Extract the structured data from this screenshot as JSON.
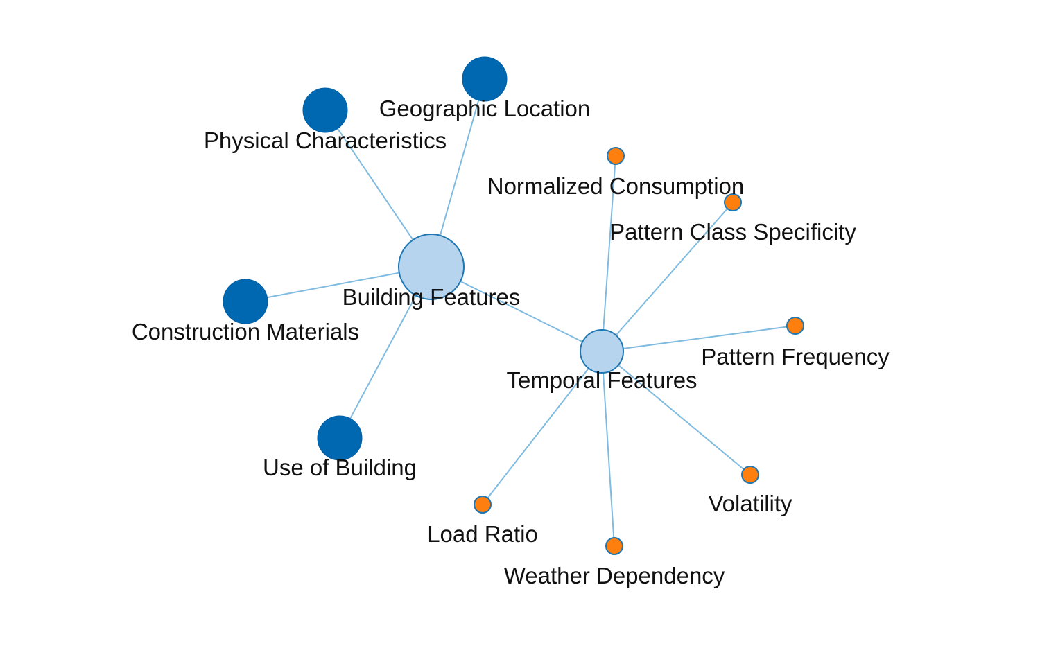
{
  "colors": {
    "hub_fill": "#b7d4ee",
    "hub_stroke": "#1f77b4",
    "building_child_fill": "#0067b1",
    "building_child_stroke": "#0060a6",
    "temporal_child_fill": "#ff7f0e",
    "temporal_child_stroke": "#1f77b4",
    "edge": "#7fbbe0"
  },
  "nodes": [
    {
      "id": "building-features",
      "label": "Building Features",
      "group": "hub"
    },
    {
      "id": "temporal-features",
      "label": "Temporal Features",
      "group": "hub"
    },
    {
      "id": "geographic-location",
      "label": "Geographic Location",
      "group": "building"
    },
    {
      "id": "physical-characteristics",
      "label": "Physical Characteristics",
      "group": "building"
    },
    {
      "id": "construction-materials",
      "label": "Construction Materials",
      "group": "building"
    },
    {
      "id": "use-of-building",
      "label": "Use of Building",
      "group": "building"
    },
    {
      "id": "normalized-consumption",
      "label": "Normalized Consumption",
      "group": "temporal"
    },
    {
      "id": "pattern-class-specificity",
      "label": "Pattern Class Specificity",
      "group": "temporal"
    },
    {
      "id": "pattern-frequency",
      "label": "Pattern Frequency",
      "group": "temporal"
    },
    {
      "id": "volatility",
      "label": "Volatility",
      "group": "temporal"
    },
    {
      "id": "weather-dependency",
      "label": "Weather Dependency",
      "group": "temporal"
    },
    {
      "id": "load-ratio",
      "label": "Load Ratio",
      "group": "temporal"
    }
  ],
  "edges": [
    {
      "source": "building-features",
      "target": "physical-characteristics"
    },
    {
      "source": "building-features",
      "target": "geographic-location"
    },
    {
      "source": "building-features",
      "target": "construction-materials"
    },
    {
      "source": "building-features",
      "target": "use-of-building"
    },
    {
      "source": "building-features",
      "target": "temporal-features"
    },
    {
      "source": "temporal-features",
      "target": "normalized-consumption"
    },
    {
      "source": "temporal-features",
      "target": "pattern-class-specificity"
    },
    {
      "source": "temporal-features",
      "target": "pattern-frequency"
    },
    {
      "source": "temporal-features",
      "target": "volatility"
    },
    {
      "source": "temporal-features",
      "target": "weather-dependency"
    },
    {
      "source": "temporal-features",
      "target": "load-ratio"
    }
  ]
}
